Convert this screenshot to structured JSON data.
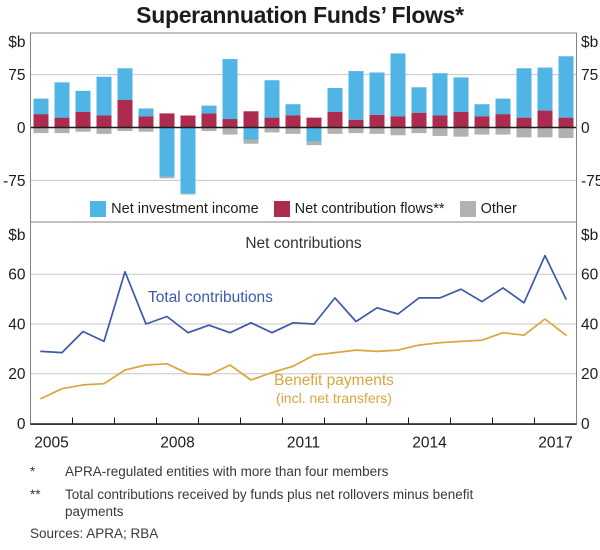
{
  "title": "Superannuation Funds’ Flows*",
  "unit_label": "$b",
  "colors": {
    "investment": "#50B4E5",
    "contribution": "#AE2B50",
    "other": "#B1B1B1",
    "total": "#3C5AA7",
    "benefit": "#DAA63C",
    "grid": "#C6C6C6",
    "axis": "#1E1E1E",
    "border": "#828282",
    "text": "#1c1c1c"
  },
  "chart_data": [
    {
      "type": "bar",
      "subtype": "stacked",
      "unit": "$b",
      "categories": [
        "2005 H1",
        "2005 H2",
        "2006 H1",
        "2006 H2",
        "2007 H1",
        "2007 H2",
        "2008 H1",
        "2008 H2",
        "2009 H1",
        "2009 H2",
        "2010 H1",
        "2010 H2",
        "2011 H1",
        "2011 H2",
        "2012 H1",
        "2012 H2",
        "2013 H1",
        "2013 H2",
        "2014 H1",
        "2014 H2",
        "2015 H1",
        "2015 H2",
        "2016 H1",
        "2016 H2",
        "2017 H1",
        "2017 H2"
      ],
      "series": [
        {
          "name": "Net investment income",
          "color_key": "investment",
          "values": [
            22,
            50,
            30,
            55,
            45,
            11,
            -70,
            -94,
            11,
            85,
            -17,
            53,
            16,
            -20,
            34,
            69,
            60,
            89,
            36,
            60,
            49,
            17,
            22,
            70,
            61,
            87
          ]
        },
        {
          "name": "Net contribution flows**",
          "color_key": "contribution",
          "values": [
            19,
            14,
            22,
            17,
            39,
            16,
            20,
            17,
            20,
            12,
            23,
            14,
            17,
            14,
            22,
            11,
            18,
            16,
            21,
            17,
            22,
            16,
            19,
            14,
            24,
            14
          ]
        },
        {
          "name": "Other",
          "color_key": "other",
          "values": [
            -8,
            -8,
            -6,
            -9,
            -5,
            -6,
            -2,
            -1,
            -5,
            -10,
            -6,
            -7,
            -9,
            -5,
            -9,
            -8,
            -9,
            -11,
            -8,
            -12,
            -13,
            -10,
            -10,
            -14,
            -14,
            -15
          ]
        }
      ],
      "stack_order": [
        1,
        0,
        2
      ],
      "ylim": [
        -134,
        134
      ],
      "yticks": [
        75,
        0,
        -75
      ],
      "gridlines": [
        75,
        -75
      ],
      "legend": [
        {
          "label": "Net investment income",
          "color_key": "investment"
        },
        {
          "label": "Net contribution flows**",
          "color_key": "contribution"
        },
        {
          "label": "Other",
          "color_key": "other"
        }
      ],
      "legend_position": "bottom-inside"
    },
    {
      "type": "line",
      "panel_title": "Net contributions",
      "unit": "$b",
      "categories": [
        "2005 H1",
        "2005 H2",
        "2006 H1",
        "2006 H2",
        "2007 H1",
        "2007 H2",
        "2008 H1",
        "2008 H2",
        "2009 H1",
        "2009 H2",
        "2010 H1",
        "2010 H2",
        "2011 H1",
        "2011 H2",
        "2012 H1",
        "2012 H2",
        "2013 H1",
        "2013 H2",
        "2014 H1",
        "2014 H2",
        "2015 H1",
        "2015 H2",
        "2016 H1",
        "2016 H2",
        "2017 H1",
        "2017 H2"
      ],
      "series": [
        {
          "name": "Total contributions",
          "color_key": "total",
          "values": [
            29,
            28.5,
            37,
            33,
            61,
            40,
            43,
            36.5,
            39.5,
            36.5,
            40.5,
            36.5,
            40.5,
            40,
            50.5,
            41,
            46.5,
            44,
            50.5,
            50.5,
            54,
            49,
            54.5,
            48.5,
            67.5,
            50
          ]
        },
        {
          "name": "Benefit payments (incl. net transfers)",
          "color_key": "benefit",
          "values": [
            10,
            14,
            15.5,
            16,
            21.5,
            23.5,
            24,
            20,
            19.5,
            23.5,
            17.5,
            20.5,
            23,
            27.5,
            28.5,
            29.5,
            29,
            29.5,
            31.5,
            32.5,
            33,
            33.5,
            36.5,
            35.5,
            42,
            35.5
          ]
        }
      ],
      "ylim": [
        0,
        81
      ],
      "yticks": [
        0,
        20,
        40,
        60
      ],
      "gridlines": [
        20,
        40,
        60
      ],
      "xtick_labels": [
        "2005",
        "2008",
        "2011",
        "2014",
        "2017"
      ],
      "annotations": {
        "total": "Total contributions",
        "benefit_line1": "Benefit payments",
        "benefit_line2": "(incl. net transfers)"
      }
    }
  ],
  "footnotes": [
    {
      "marker": "*",
      "text": "APRA-regulated entities with more than four members"
    },
    {
      "marker": "**",
      "text": "Total contributions received by funds plus net rollovers minus benefit payments"
    }
  ],
  "sources": "Sources: APRA; RBA"
}
